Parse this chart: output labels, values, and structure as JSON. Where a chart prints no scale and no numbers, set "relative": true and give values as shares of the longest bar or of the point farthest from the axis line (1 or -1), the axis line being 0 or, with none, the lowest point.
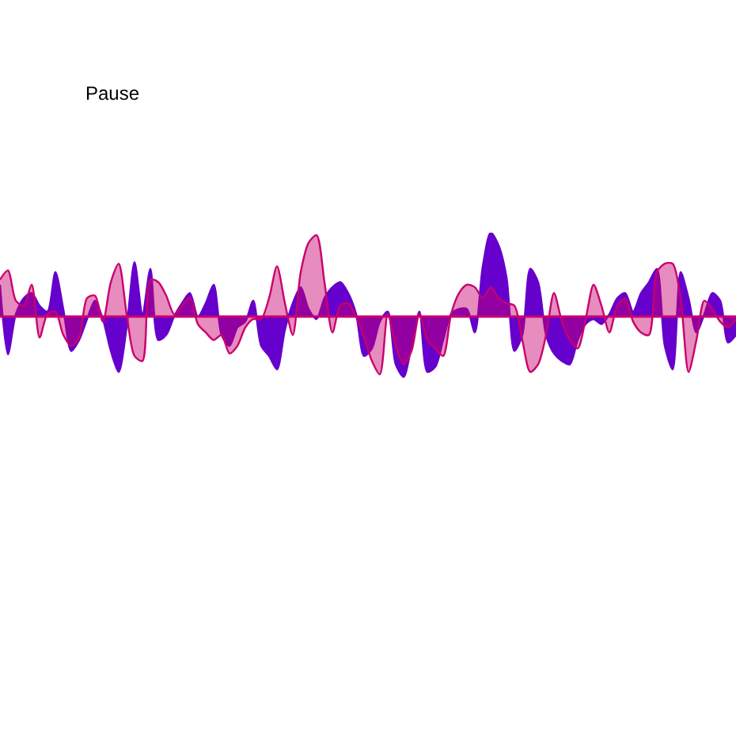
{
  "chart_data": {
    "type": "area",
    "relative": true,
    "annotations": [
      "Pause"
    ],
    "ref_lines": [
      {
        "axis": "y",
        "value": 0,
        "color": "#c8006e"
      }
    ],
    "categories": [
      null,
      null,
      null,
      null,
      null,
      null,
      null,
      null,
      null,
      null,
      null,
      null,
      null,
      null,
      null,
      null,
      null,
      null,
      null,
      null,
      null,
      null,
      null,
      null,
      null,
      null,
      null,
      null,
      null,
      null,
      null,
      null,
      null,
      null,
      null,
      null,
      null,
      null,
      null,
      null,
      null,
      null,
      null,
      null,
      null,
      null,
      null,
      null,
      null,
      null,
      null,
      null,
      null,
      null,
      null,
      null,
      null,
      null,
      null,
      null,
      null,
      null,
      null,
      null,
      null,
      null,
      null,
      null,
      null,
      null,
      null,
      null,
      null,
      null,
      null,
      null,
      null,
      null,
      null,
      null,
      null,
      null,
      null,
      null,
      null,
      null,
      null,
      null,
      null,
      null,
      null,
      null,
      null,
      null
    ],
    "series": [
      {
        "color": "#6600cc",
        "values": [
          0.38,
          -0.45,
          0.03,
          0.22,
          0.28,
          0.13,
          0.06,
          0.53,
          0.09,
          -0.41,
          -0.28,
          -0.03,
          0.19,
          -0.03,
          -0.41,
          -0.66,
          -0.13,
          0.65,
          0.03,
          0.57,
          -0.28,
          -0.22,
          0,
          0.16,
          0.28,
          0,
          0.16,
          0.38,
          -0.22,
          -0.35,
          -0.13,
          -0.06,
          0.19,
          -0.35,
          -0.47,
          -0.63,
          -0.16,
          0.16,
          0.35,
          0.09,
          -0.03,
          0.22,
          0.35,
          0.41,
          0.28,
          0.03,
          -0.47,
          -0.38,
          -0.06,
          0.06,
          -0.57,
          -0.72,
          -0.35,
          0.06,
          -0.66,
          -0.6,
          -0.28,
          0.03,
          0.09,
          0.09,
          -0.19,
          0.6,
          1,
          0.85,
          0.47,
          -0.41,
          -0.22,
          0.57,
          0.41,
          -0.22,
          -0.44,
          -0.53,
          -0.57,
          -0.28,
          -0.09,
          -0.03,
          -0.09,
          0.03,
          0.22,
          0.28,
          0.06,
          0.28,
          0.41,
          0.57,
          -0.35,
          -0.63,
          0.53,
          0.22,
          -0.19,
          0.03,
          0.28,
          0.19,
          -0.31,
          -0.22
        ]
      },
      {
        "color": "#c8006e",
        "values": [
          0.44,
          0.55,
          0.19,
          0.13,
          0.38,
          -0.25,
          0.03,
          0.06,
          -0.22,
          -0.35,
          -0.25,
          0.22,
          0.25,
          -0.06,
          0.41,
          0.63,
          0.03,
          -0.47,
          -0.53,
          0.44,
          0.41,
          0.25,
          0.03,
          0.13,
          0.23,
          -0.09,
          -0.19,
          -0.28,
          -0.22,
          -0.44,
          -0.35,
          -0.13,
          -0.03,
          -0.03,
          0.22,
          0.6,
          0.16,
          -0.22,
          0.53,
          0.88,
          0.97,
          0.41,
          -0.19,
          0.13,
          0.16,
          0,
          -0.25,
          -0.53,
          -0.69,
          0.03,
          -0.35,
          -0.57,
          -0.41,
          0.03,
          -0.28,
          -0.38,
          -0.47,
          0.03,
          0.28,
          0.38,
          0.35,
          0.22,
          0.35,
          0.22,
          0.16,
          0.13,
          -0.28,
          -0.66,
          -0.57,
          -0.22,
          0.28,
          -0.06,
          -0.28,
          -0.38,
          -0.03,
          0.38,
          0.13,
          -0.19,
          0.13,
          0.22,
          -0.06,
          -0.19,
          -0.22,
          0.53,
          0.63,
          0.63,
          0.22,
          -0.66,
          -0.28,
          0.19,
          0.09,
          -0.06,
          -0.13,
          -0.03
        ]
      }
    ]
  }
}
